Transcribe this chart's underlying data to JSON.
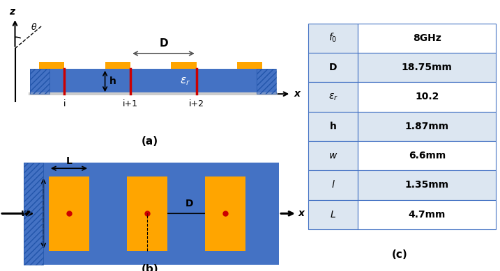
{
  "blue_color": "#4472C4",
  "orange_color": "#FFA500",
  "red_color": "#CC0000",
  "hatch_color": "#2255AA",
  "gray_color": "#AAAAAA",
  "table_bg_alt": "#DCE6F1",
  "table_bg_white": "#FFFFFF",
  "table_border": "#4472C4",
  "table_rows": [
    [
      "f_0",
      "8GHz"
    ],
    [
      "D",
      "18.75mm"
    ],
    [
      "eps_r",
      "10.2"
    ],
    [
      "h",
      "1.87mm"
    ],
    [
      "w",
      "6.6mm"
    ],
    [
      "l",
      "1.35mm"
    ],
    [
      "L",
      "4.7mm"
    ]
  ],
  "label_a": "(a)",
  "label_b": "(b)",
  "label_c": "(c)"
}
